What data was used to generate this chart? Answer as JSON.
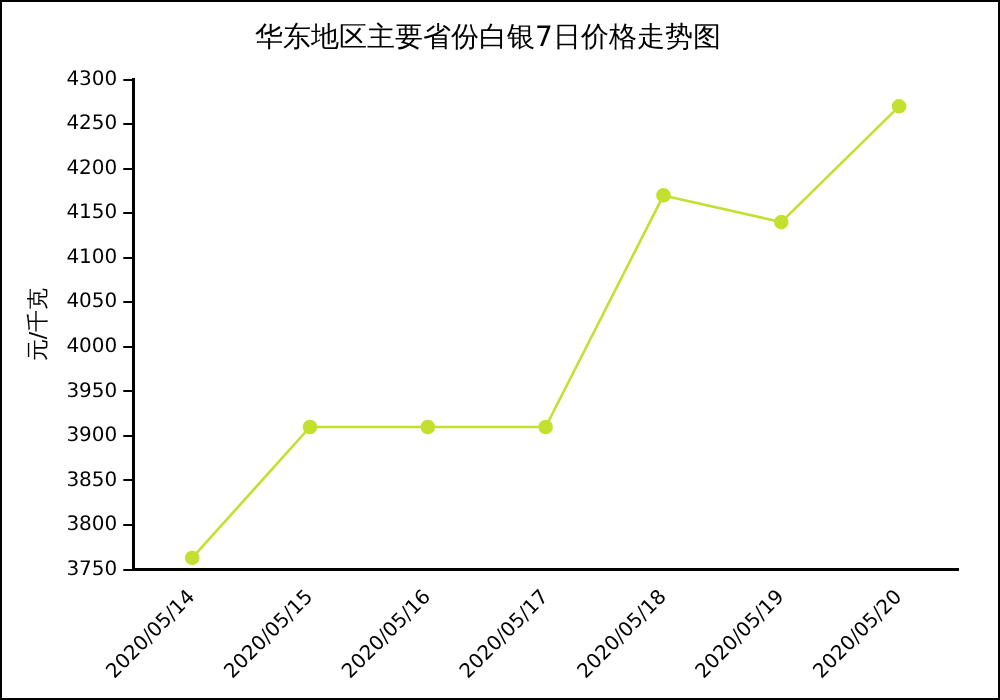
{
  "chart_data": {
    "type": "line",
    "title": "华东地区主要省份白银7日价格走势图",
    "ylabel": "元/千克",
    "categories": [
      "2020/05/14",
      "2020/05/15",
      "2020/05/16",
      "2020/05/17",
      "2020/05/18",
      "2020/05/19",
      "2020/05/20"
    ],
    "series": [
      {
        "color": "#c3e02f",
        "values": [
          3763,
          3910,
          3910,
          3910,
          4170,
          4140,
          4270
        ]
      }
    ],
    "ylim": [
      3750,
      4300
    ],
    "yticks": [
      3750,
      3800,
      3850,
      3900,
      3950,
      4000,
      4050,
      4100,
      4150,
      4200,
      4250,
      4300
    ],
    "grid": false,
    "legend": false,
    "marker": "circle",
    "line_style": "solid"
  }
}
